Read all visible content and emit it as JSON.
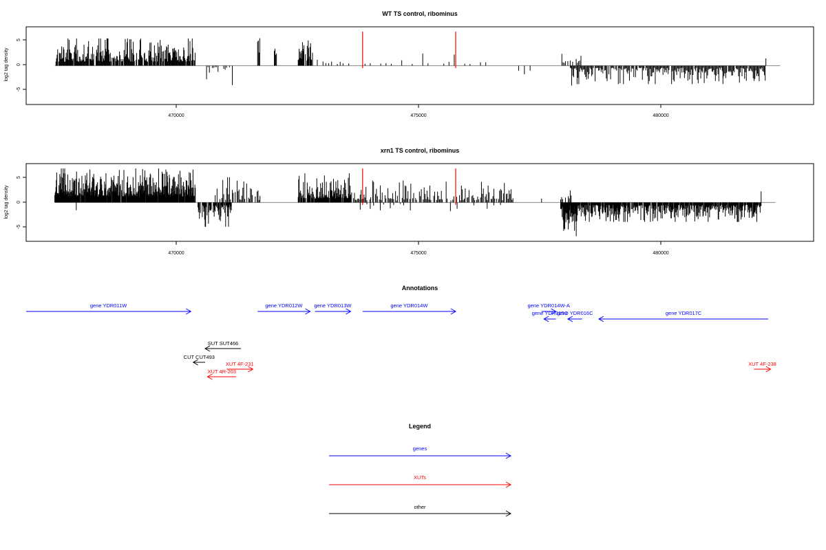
{
  "panels": [
    {
      "title": "WT TS control, ribominus",
      "ylabel": "log2 tag density",
      "xticks": [
        470000,
        475000,
        480000
      ],
      "yticks": [
        5,
        0,
        -5
      ]
    },
    {
      "title": "xrn1 TS control, ribominus",
      "ylabel": "log2 tag density",
      "xticks": [
        470000,
        475000,
        480000
      ],
      "yticks": [
        5,
        0,
        -5
      ]
    }
  ],
  "annotations": {
    "title": "Annotations",
    "items": [
      {
        "label": "gene YDR011W",
        "start": 467000,
        "end": 470450,
        "strand": "+",
        "color": "#0000ff",
        "row": 0
      },
      {
        "label": "gene YDR012W",
        "start": 471850,
        "end": 472950,
        "strand": "+",
        "color": "#0000ff",
        "row": 0
      },
      {
        "label": "gene YDR013W",
        "start": 473050,
        "end": 473800,
        "strand": "+",
        "color": "#0000ff",
        "row": 0
      },
      {
        "label": "gene YDR014W",
        "start": 474050,
        "end": 476000,
        "strand": "+",
        "color": "#0000ff",
        "row": 0
      },
      {
        "label": "gene YDR014W-A",
        "start": 477800,
        "end": 478100,
        "strand": "+",
        "color": "#0000ff",
        "row": 0
      },
      {
        "label": "gene YDR015C",
        "start": 477850,
        "end": 478100,
        "strand": "-",
        "color": "#0000ff",
        "row": 1
      },
      {
        "label": "gene YDR016C",
        "start": 478350,
        "end": 478650,
        "strand": "-",
        "color": "#0000ff",
        "row": 1
      },
      {
        "label": "gene YDR017C",
        "start": 479000,
        "end": 482550,
        "strand": "-",
        "color": "#0000ff",
        "row": 1
      },
      {
        "label": "SUT SUT466",
        "start": 470750,
        "end": 471500,
        "strand": "-",
        "color": "#000000",
        "row": 2
      },
      {
        "label": "CUT CUT493",
        "start": 470500,
        "end": 470750,
        "strand": "-",
        "color": "#000000",
        "row": 3
      },
      {
        "label": "XUT 4F-231",
        "start": 471200,
        "end": 471750,
        "strand": "+",
        "color": "#ff0000",
        "row": 4
      },
      {
        "label": "XUT 4R-203",
        "start": 470800,
        "end": 471400,
        "strand": "-",
        "color": "#ff0000",
        "row": 5
      },
      {
        "label": "XUT 4F-238",
        "start": 482250,
        "end": 482600,
        "strand": "+",
        "color": "#ff0000",
        "row": 4
      }
    ]
  },
  "legend": {
    "title": "Legend",
    "entries": [
      {
        "label": "genes",
        "color": "#0000ff"
      },
      {
        "label": "XUTs",
        "color": "#ff0000"
      },
      {
        "label": "other",
        "color": "#000000"
      }
    ]
  },
  "chart_data": [
    {
      "type": "bar",
      "title": "WT TS control, ribominus",
      "xlabel": "",
      "ylabel": "log2 tag density",
      "xlim": [
        467000,
        483500
      ],
      "ylim": [
        -8,
        8
      ],
      "baseline_color": "#999999",
      "bar_color": "#000000",
      "highlight_positions": [
        474050,
        476000
      ],
      "highlight_color": "#ff0000",
      "segments": [
        {
          "start": 467600,
          "end": 470550,
          "step": 12,
          "sign": 1,
          "min": 0.8,
          "max": 5.6,
          "density": 0.92
        },
        {
          "start": 470750,
          "end": 471350,
          "step": 30,
          "sign": -1,
          "min": 0.3,
          "max": 3.2,
          "density": 0.5
        },
        {
          "start": 471850,
          "end": 471900,
          "step": 15,
          "sign": 1,
          "min": 2.5,
          "max": 5.8,
          "density": 1.0
        },
        {
          "start": 472200,
          "end": 472250,
          "step": 15,
          "sign": 1,
          "min": 1.5,
          "max": 3.5,
          "density": 1.0
        },
        {
          "start": 472700,
          "end": 473000,
          "step": 10,
          "sign": 1,
          "min": 1.0,
          "max": 5.2,
          "density": 0.85
        },
        {
          "start": 473100,
          "end": 473800,
          "step": 60,
          "sign": 1,
          "min": 0.3,
          "max": 3.0,
          "density": 0.6
        },
        {
          "start": 474100,
          "end": 476900,
          "step": 110,
          "sign": 1,
          "min": 0.3,
          "max": 2.5,
          "density": 0.5
        },
        {
          "start": 477200,
          "end": 477600,
          "step": 120,
          "sign": -1,
          "min": 0.5,
          "max": 2.0,
          "density": 0.5
        },
        {
          "start": 478200,
          "end": 478700,
          "step": 25,
          "sign": 1,
          "min": 0.5,
          "max": 2.5,
          "density": 0.5
        },
        {
          "start": 478400,
          "end": 482500,
          "step": 18,
          "sign": -1,
          "min": 0.4,
          "max": 3.8,
          "density": 0.85
        }
      ],
      "extra_bars": [
        {
          "x": 471320,
          "y": -4.0
        },
        {
          "x": 478430,
          "y": -4.1
        },
        {
          "x": 481600,
          "y": -3.8
        },
        {
          "x": 482500,
          "y": 1.5
        }
      ]
    },
    {
      "type": "bar",
      "title": "xrn1 TS control, ribominus",
      "xlabel": "",
      "ylabel": "log2 tag density",
      "xlim": [
        467000,
        483500
      ],
      "ylim": [
        -8,
        8
      ],
      "baseline_color": "#999999",
      "bar_color": "#000000",
      "highlight_positions": [
        474050,
        476000
      ],
      "highlight_color": "#ff0000",
      "segments": [
        {
          "start": 467600,
          "end": 470550,
          "step": 8,
          "sign": 1,
          "min": 1.2,
          "max": 7.0,
          "density": 0.97
        },
        {
          "start": 470600,
          "end": 471300,
          "step": 10,
          "sign": -1,
          "min": 0.5,
          "max": 5.0,
          "density": 0.9
        },
        {
          "start": 470900,
          "end": 471900,
          "step": 20,
          "sign": 1,
          "min": 0.5,
          "max": 5.2,
          "density": 0.7
        },
        {
          "start": 472700,
          "end": 473800,
          "step": 10,
          "sign": 1,
          "min": 0.8,
          "max": 6.0,
          "density": 0.85
        },
        {
          "start": 473800,
          "end": 477200,
          "step": 20,
          "sign": 1,
          "min": 0.4,
          "max": 4.5,
          "density": 0.75
        },
        {
          "start": 474000,
          "end": 477100,
          "step": 70,
          "sign": -1,
          "min": 0.3,
          "max": 1.8,
          "density": 0.4
        },
        {
          "start": 478200,
          "end": 482400,
          "step": 10,
          "sign": -1,
          "min": 0.5,
          "max": 4.0,
          "density": 0.9
        },
        {
          "start": 478250,
          "end": 478550,
          "step": 12,
          "sign": -1,
          "min": 2.0,
          "max": 7.0,
          "density": 0.9
        },
        {
          "start": 478200,
          "end": 478450,
          "step": 20,
          "sign": 1,
          "min": 0.5,
          "max": 2.5,
          "density": 0.6
        }
      ],
      "extra_bars": [
        {
          "x": 468050,
          "y": -1.6
        },
        {
          "x": 477800,
          "y": 0.8
        },
        {
          "x": 482400,
          "y": 2.3
        }
      ]
    }
  ]
}
